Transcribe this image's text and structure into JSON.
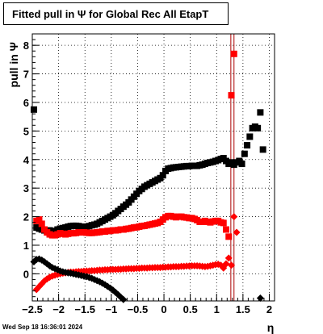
{
  "title": "Fitted pull in  Ψ  for Global Rec All EtapT",
  "timestamp": "Wed Sep 18 16:36:01 2024",
  "chart_data": {
    "type": "scatter",
    "xlabel": "η",
    "ylabel": "pull in  Ψ",
    "xlim": [
      -2.5,
      2.1
    ],
    "ylim": [
      -0.95,
      8.4
    ],
    "x_ticks": [
      "-2.5",
      "-2",
      "-1.5",
      "-1",
      "-0.5",
      "0",
      "0.5",
      "1",
      "1.5",
      "2"
    ],
    "y_ticks": [
      "0",
      "1",
      "2",
      "3",
      "4",
      "5",
      "6",
      "7",
      "8"
    ],
    "grid": true,
    "colors": {
      "black": "#000000",
      "red": "#ff0000",
      "darkred": "#aa0000"
    },
    "vertical_lines": [
      1.27,
      1.33
    ],
    "series": [
      {
        "marker": "square",
        "color": "#000000",
        "points": [
          [
            -2.47,
            5.75
          ],
          [
            -2.42,
            1.62
          ],
          [
            -2.37,
            1.58
          ],
          [
            -2.32,
            1.55
          ],
          [
            -2.27,
            1.52
          ],
          [
            -2.22,
            1.5
          ],
          [
            -2.17,
            1.52
          ],
          [
            -2.12,
            1.48
          ],
          [
            -2.07,
            1.5
          ],
          [
            -2.02,
            1.55
          ],
          [
            -1.97,
            1.58
          ],
          [
            -1.92,
            1.6
          ],
          [
            -1.87,
            1.62
          ],
          [
            -1.82,
            1.65
          ],
          [
            -1.77,
            1.67
          ],
          [
            -1.72,
            1.68
          ],
          [
            -1.67,
            1.68
          ],
          [
            -1.62,
            1.67
          ],
          [
            -1.57,
            1.65
          ],
          [
            -1.52,
            1.65
          ],
          [
            -1.47,
            1.65
          ],
          [
            -1.42,
            1.67
          ],
          [
            -1.37,
            1.7
          ],
          [
            -1.32,
            1.72
          ],
          [
            -1.27,
            1.75
          ],
          [
            -1.22,
            1.8
          ],
          [
            -1.17,
            1.85
          ],
          [
            -1.12,
            1.9
          ],
          [
            -1.07,
            1.95
          ],
          [
            -1.02,
            2.0
          ],
          [
            -0.97,
            2.05
          ],
          [
            -0.92,
            2.12
          ],
          [
            -0.87,
            2.2
          ],
          [
            -0.82,
            2.27
          ],
          [
            -0.77,
            2.35
          ],
          [
            -0.72,
            2.42
          ],
          [
            -0.67,
            2.5
          ],
          [
            -0.62,
            2.6
          ],
          [
            -0.57,
            2.7
          ],
          [
            -0.52,
            2.8
          ],
          [
            -0.47,
            2.9
          ],
          [
            -0.42,
            2.97
          ],
          [
            -0.37,
            3.05
          ],
          [
            -0.32,
            3.1
          ],
          [
            -0.27,
            3.15
          ],
          [
            -0.22,
            3.2
          ],
          [
            -0.17,
            3.25
          ],
          [
            -0.12,
            3.3
          ],
          [
            -0.07,
            3.35
          ],
          [
            -0.02,
            3.45
          ],
          [
            0.03,
            3.6
          ],
          [
            0.08,
            3.68
          ],
          [
            0.13,
            3.7
          ],
          [
            0.18,
            3.72
          ],
          [
            0.23,
            3.73
          ],
          [
            0.28,
            3.74
          ],
          [
            0.33,
            3.75
          ],
          [
            0.38,
            3.76
          ],
          [
            0.43,
            3.77
          ],
          [
            0.48,
            3.77
          ],
          [
            0.53,
            3.78
          ],
          [
            0.58,
            3.78
          ],
          [
            0.63,
            3.78
          ],
          [
            0.68,
            3.8
          ],
          [
            0.73,
            3.82
          ],
          [
            0.78,
            3.85
          ],
          [
            0.83,
            3.88
          ],
          [
            0.88,
            3.9
          ],
          [
            0.93,
            3.92
          ],
          [
            0.98,
            3.95
          ],
          [
            1.03,
            3.98
          ],
          [
            1.08,
            4.02
          ],
          [
            1.13,
            4.05
          ],
          [
            1.18,
            3.95
          ],
          [
            1.23,
            3.85
          ],
          [
            1.28,
            3.9
          ],
          [
            1.33,
            3.82
          ],
          [
            1.38,
            3.9
          ],
          [
            1.43,
            3.95
          ],
          [
            1.48,
            3.85
          ],
          [
            1.53,
            4.2
          ],
          [
            1.58,
            4.5
          ],
          [
            1.63,
            4.8
          ],
          [
            1.68,
            5.1
          ],
          [
            1.73,
            5.15
          ],
          [
            1.78,
            5.1
          ],
          [
            1.83,
            5.65
          ],
          [
            1.88,
            4.35
          ]
        ]
      },
      {
        "marker": "square",
        "color": "#ff0000",
        "points": [
          [
            -2.42,
            1.85
          ],
          [
            -2.37,
            1.9
          ],
          [
            -2.32,
            1.75
          ],
          [
            -2.27,
            1.55
          ],
          [
            -2.22,
            1.45
          ],
          [
            -2.17,
            1.38
          ],
          [
            -2.12,
            1.35
          ],
          [
            -2.07,
            1.35
          ],
          [
            -2.02,
            1.38
          ],
          [
            -1.97,
            1.42
          ],
          [
            -1.92,
            1.4
          ],
          [
            -1.87,
            1.38
          ],
          [
            -1.82,
            1.4
          ],
          [
            -1.77,
            1.42
          ],
          [
            -1.72,
            1.42
          ],
          [
            -1.67,
            1.43
          ],
          [
            -1.62,
            1.45
          ],
          [
            -1.57,
            1.45
          ],
          [
            -1.52,
            1.45
          ],
          [
            -1.47,
            1.44
          ],
          [
            -1.42,
            1.43
          ],
          [
            -1.37,
            1.43
          ],
          [
            -1.32,
            1.44
          ],
          [
            -1.27,
            1.45
          ],
          [
            -1.22,
            1.46
          ],
          [
            -1.17,
            1.48
          ],
          [
            -1.12,
            1.48
          ],
          [
            -1.07,
            1.5
          ],
          [
            -1.02,
            1.5
          ],
          [
            -0.97,
            1.52
          ],
          [
            -0.92,
            1.52
          ],
          [
            -0.87,
            1.53
          ],
          [
            -0.82,
            1.55
          ],
          [
            -0.77,
            1.55
          ],
          [
            -0.72,
            1.57
          ],
          [
            -0.67,
            1.58
          ],
          [
            -0.62,
            1.6
          ],
          [
            -0.57,
            1.62
          ],
          [
            -0.52,
            1.63
          ],
          [
            -0.47,
            1.65
          ],
          [
            -0.42,
            1.67
          ],
          [
            -0.37,
            1.68
          ],
          [
            -0.32,
            1.7
          ],
          [
            -0.27,
            1.72
          ],
          [
            -0.22,
            1.74
          ],
          [
            -0.17,
            1.76
          ],
          [
            -0.12,
            1.78
          ],
          [
            -0.07,
            1.82
          ],
          [
            -0.02,
            1.9
          ],
          [
            0.03,
            1.98
          ],
          [
            0.08,
            2.02
          ],
          [
            0.13,
            2.02
          ],
          [
            0.18,
            2.0
          ],
          [
            0.23,
            1.98
          ],
          [
            0.28,
            2.0
          ],
          [
            0.33,
            2.0
          ],
          [
            0.38,
            1.98
          ],
          [
            0.43,
            1.97
          ],
          [
            0.48,
            1.95
          ],
          [
            0.53,
            1.95
          ],
          [
            0.58,
            1.92
          ],
          [
            0.63,
            1.88
          ],
          [
            0.68,
            1.82
          ],
          [
            0.73,
            1.82
          ],
          [
            0.78,
            1.85
          ],
          [
            0.83,
            1.82
          ],
          [
            0.88,
            1.8
          ],
          [
            0.93,
            1.83
          ],
          [
            0.98,
            1.85
          ],
          [
            1.03,
            1.85
          ],
          [
            1.08,
            1.8
          ],
          [
            1.13,
            1.78
          ],
          [
            1.18,
            1.55
          ],
          [
            1.23,
            1.3
          ],
          [
            1.28,
            6.25
          ],
          [
            1.33,
            7.7
          ]
        ]
      },
      {
        "marker": "diamond",
        "color": "#ff0000",
        "points": [
          [
            -2.42,
            -0.55
          ],
          [
            -2.37,
            -0.45
          ],
          [
            -2.32,
            -0.35
          ],
          [
            -2.27,
            -0.25
          ],
          [
            -2.22,
            -0.18
          ],
          [
            -2.17,
            -0.12
          ],
          [
            -2.12,
            -0.08
          ],
          [
            -2.07,
            -0.05
          ],
          [
            -2.02,
            -0.02
          ],
          [
            -1.97,
            0.0
          ],
          [
            -1.92,
            0.02
          ],
          [
            -1.87,
            0.03
          ],
          [
            -1.82,
            0.05
          ],
          [
            -1.77,
            0.06
          ],
          [
            -1.72,
            0.06
          ],
          [
            -1.67,
            0.07
          ],
          [
            -1.62,
            0.08
          ],
          [
            -1.57,
            0.08
          ],
          [
            -1.52,
            0.09
          ],
          [
            -1.47,
            0.1
          ],
          [
            -1.42,
            0.1
          ],
          [
            -1.37,
            0.11
          ],
          [
            -1.32,
            0.11
          ],
          [
            -1.27,
            0.12
          ],
          [
            -1.22,
            0.13
          ],
          [
            -1.17,
            0.13
          ],
          [
            -1.12,
            0.14
          ],
          [
            -1.07,
            0.14
          ],
          [
            -1.02,
            0.15
          ],
          [
            -0.97,
            0.15
          ],
          [
            -0.92,
            0.15
          ],
          [
            -0.87,
            0.16
          ],
          [
            -0.82,
            0.16
          ],
          [
            -0.77,
            0.17
          ],
          [
            -0.72,
            0.17
          ],
          [
            -0.67,
            0.18
          ],
          [
            -0.62,
            0.18
          ],
          [
            -0.57,
            0.18
          ],
          [
            -0.52,
            0.19
          ],
          [
            -0.47,
            0.19
          ],
          [
            -0.42,
            0.2
          ],
          [
            -0.37,
            0.2
          ],
          [
            -0.32,
            0.2
          ],
          [
            -0.27,
            0.21
          ],
          [
            -0.22,
            0.21
          ],
          [
            -0.17,
            0.22
          ],
          [
            -0.12,
            0.22
          ],
          [
            -0.07,
            0.22
          ],
          [
            -0.02,
            0.23
          ],
          [
            0.03,
            0.23
          ],
          [
            0.08,
            0.24
          ],
          [
            0.13,
            0.24
          ],
          [
            0.18,
            0.25
          ],
          [
            0.23,
            0.25
          ],
          [
            0.28,
            0.25
          ],
          [
            0.33,
            0.26
          ],
          [
            0.38,
            0.26
          ],
          [
            0.43,
            0.27
          ],
          [
            0.48,
            0.27
          ],
          [
            0.53,
            0.28
          ],
          [
            0.58,
            0.28
          ],
          [
            0.63,
            0.28
          ],
          [
            0.68,
            0.27
          ],
          [
            0.73,
            0.26
          ],
          [
            0.78,
            0.25
          ],
          [
            0.83,
            0.26
          ],
          [
            0.88,
            0.28
          ],
          [
            0.93,
            0.3
          ],
          [
            0.98,
            0.32
          ],
          [
            1.03,
            0.33
          ],
          [
            1.08,
            0.3
          ],
          [
            1.13,
            0.2
          ],
          [
            1.18,
            0.35
          ],
          [
            1.23,
            0.55
          ],
          [
            1.28,
            0.3
          ],
          [
            1.33,
            2.0
          ],
          [
            1.38,
            1.45
          ]
        ]
      },
      {
        "marker": "diamond",
        "color": "#000000",
        "points": [
          [
            -2.47,
            0.42
          ],
          [
            -2.42,
            0.5
          ],
          [
            -2.37,
            0.52
          ],
          [
            -2.32,
            0.48
          ],
          [
            -2.27,
            0.42
          ],
          [
            -2.22,
            0.35
          ],
          [
            -2.17,
            0.28
          ],
          [
            -2.12,
            0.22
          ],
          [
            -2.07,
            0.18
          ],
          [
            -2.02,
            0.14
          ],
          [
            -1.97,
            0.1
          ],
          [
            -1.92,
            0.07
          ],
          [
            -1.87,
            0.05
          ],
          [
            -1.82,
            0.03
          ],
          [
            -1.77,
            0.02
          ],
          [
            -1.72,
            0.0
          ],
          [
            -1.67,
            -0.02
          ],
          [
            -1.62,
            -0.04
          ],
          [
            -1.57,
            -0.06
          ],
          [
            -1.52,
            -0.08
          ],
          [
            -1.47,
            -0.1
          ],
          [
            -1.42,
            -0.13
          ],
          [
            -1.37,
            -0.16
          ],
          [
            -1.32,
            -0.2
          ],
          [
            -1.27,
            -0.24
          ],
          [
            -1.22,
            -0.28
          ],
          [
            -1.17,
            -0.33
          ],
          [
            -1.12,
            -0.38
          ],
          [
            -1.07,
            -0.44
          ],
          [
            -1.02,
            -0.5
          ],
          [
            -0.97,
            -0.57
          ],
          [
            -0.92,
            -0.65
          ],
          [
            -0.87,
            -0.73
          ],
          [
            -0.82,
            -0.82
          ],
          [
            -0.77,
            -0.9
          ],
          [
            1.83,
            -0.85
          ]
        ]
      }
    ]
  }
}
